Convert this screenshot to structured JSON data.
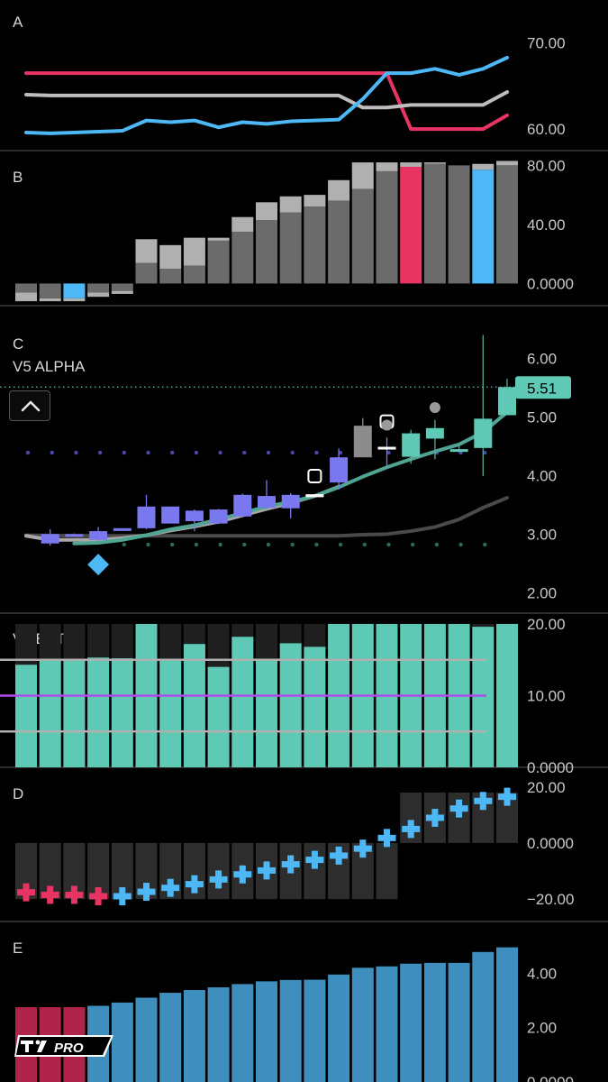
{
  "colors": {
    "red": "#e83462",
    "gray": "#bdbdbd",
    "blue": "#4db8f5",
    "teal": "#5ec9b5",
    "purple": "#7a78ef",
    "darkgray": "#6b6b6b",
    "lightgray": "#b0b0b0",
    "violet": "#b04ce8",
    "steel": "#3f8fbe",
    "crimson": "#b0234a"
  },
  "chart_data": [
    {
      "type": "line",
      "panel": "A",
      "title": "A",
      "x": [
        0,
        1,
        2,
        3,
        4,
        5,
        6,
        7,
        8,
        9,
        10,
        11,
        12,
        13,
        14,
        15,
        16,
        17,
        18,
        19,
        20
      ],
      "ylim": [
        57.5,
        75
      ],
      "yticks": [
        "70.00",
        "60.00"
      ],
      "yticks_values": [
        70,
        60
      ],
      "series": [
        {
          "color": "red",
          "values": [
            66.5,
            66.5,
            66.5,
            66.5,
            66.5,
            66.5,
            66.5,
            66.5,
            66.5,
            66.5,
            66.5,
            66.5,
            66.5,
            66.5,
            66.5,
            66.5,
            60.0,
            60.0,
            60.0,
            60.0,
            61.6
          ]
        },
        {
          "color": "gray",
          "values": [
            64.0,
            63.9,
            63.9,
            63.9,
            63.9,
            63.9,
            63.9,
            63.9,
            63.9,
            63.9,
            63.9,
            63.9,
            63.9,
            63.9,
            62.5,
            62.5,
            62.8,
            62.8,
            62.8,
            62.8,
            64.3
          ]
        },
        {
          "color": "blue",
          "values": [
            59.6,
            59.5,
            59.6,
            59.7,
            59.8,
            61.0,
            60.8,
            61.0,
            60.2,
            60.8,
            60.6,
            60.9,
            61.0,
            61.1,
            63.5,
            66.5,
            66.5,
            67.0,
            66.3,
            67.0,
            68.3
          ]
        }
      ]
    },
    {
      "type": "bar",
      "panel": "B",
      "title": "B",
      "x": [
        0,
        1,
        2,
        3,
        4,
        5,
        6,
        7,
        8,
        9,
        10,
        11,
        12,
        13,
        14,
        15,
        16,
        17,
        18,
        19,
        20
      ],
      "ylim": [
        -15,
        90
      ],
      "yticks": [
        "80.00",
        "40.00",
        "0.0000"
      ],
      "yticks_values": [
        80,
        40,
        0
      ],
      "series": [
        {
          "name": "",
          "style": "main",
          "values": [
            -6,
            -10,
            -10,
            -6,
            -5,
            14,
            10,
            12,
            29,
            35,
            43,
            48,
            52,
            56,
            64,
            76,
            79,
            81,
            80,
            77,
            80
          ],
          "colors": [
            "darkgray",
            "darkgray",
            "blue",
            "darkgray",
            "darkgray",
            "darkgray",
            "darkgray",
            "darkgray",
            "darkgray",
            "darkgray",
            "darkgray",
            "darkgray",
            "darkgray",
            "darkgray",
            "darkgray",
            "darkgray",
            "red",
            "darkgray",
            "darkgray",
            "blue",
            "darkgray"
          ]
        },
        {
          "name": "",
          "style": "cap",
          "values": [
            -12,
            -12,
            -12,
            -9,
            -7,
            30,
            26,
            31,
            31,
            45,
            55,
            59,
            60,
            70,
            82,
            82,
            82,
            82,
            80,
            81,
            83
          ]
        }
      ]
    },
    {
      "type": "candlestick",
      "panel": "C",
      "title": "C",
      "label": "V5 ALPHA",
      "last_value": "5.51",
      "last_value_num": 5.51,
      "ylim": [
        1.65,
        6.9
      ],
      "yticks": [
        "6.00",
        "5.00",
        "4.00",
        "3.00",
        "2.00"
      ],
      "yticks_values": [
        6,
        5,
        4,
        3,
        2
      ],
      "candles": [
        {
          "i": 1,
          "open": 2.84,
          "close": 3.0,
          "high": 3.08,
          "low": 2.8,
          "color": "purple"
        },
        {
          "i": 2,
          "open": 2.97,
          "close": 3.0,
          "high": 3.01,
          "low": 2.96,
          "color": "purple"
        },
        {
          "i": 3,
          "open": 2.9,
          "close": 3.05,
          "high": 3.12,
          "low": 2.88,
          "color": "purple"
        },
        {
          "i": 4,
          "open": 3.08,
          "close": 3.1,
          "high": 3.1,
          "low": 3.07,
          "color": "purple"
        },
        {
          "i": 5,
          "open": 3.1,
          "close": 3.47,
          "high": 3.67,
          "low": 3.08,
          "color": "purple"
        },
        {
          "i": 6,
          "open": 3.18,
          "close": 3.47,
          "high": 3.47,
          "low": 3.18,
          "color": "purple"
        },
        {
          "i": 7,
          "open": 3.22,
          "close": 3.4,
          "high": 3.42,
          "low": 3.05,
          "color": "purple"
        },
        {
          "i": 8,
          "open": 3.18,
          "close": 3.42,
          "high": 3.43,
          "low": 3.17,
          "color": "purple"
        },
        {
          "i": 9,
          "open": 3.3,
          "close": 3.67,
          "high": 3.69,
          "low": 3.3,
          "color": "purple"
        },
        {
          "i": 10,
          "open": 3.45,
          "close": 3.65,
          "high": 3.92,
          "low": 3.42,
          "color": "purple"
        },
        {
          "i": 11,
          "open": 3.44,
          "close": 3.67,
          "high": 3.7,
          "low": 3.27,
          "color": "purple"
        },
        {
          "i": 12,
          "open": 3.63,
          "close": 3.68,
          "high": 3.68,
          "low": 3.63,
          "color": "white"
        },
        {
          "i": 13,
          "open": 3.88,
          "close": 4.31,
          "high": 4.46,
          "low": 3.76,
          "color": "purple"
        },
        {
          "i": 14,
          "open": 4.31,
          "close": 4.85,
          "high": 4.98,
          "low": 4.31,
          "color": "gray"
        },
        {
          "i": 15,
          "open": 4.47,
          "close": 4.49,
          "high": 4.65,
          "low": 4.12,
          "color": "white"
        },
        {
          "i": 16,
          "open": 4.32,
          "close": 4.72,
          "high": 4.78,
          "low": 4.2,
          "color": "teal"
        },
        {
          "i": 17,
          "open": 4.63,
          "close": 4.81,
          "high": 4.95,
          "low": 4.28,
          "color": "teal"
        },
        {
          "i": 18,
          "open": 4.43,
          "close": 4.45,
          "high": 4.55,
          "low": 4.4,
          "color": "teal"
        },
        {
          "i": 19,
          "open": 4.47,
          "close": 4.97,
          "high": 6.4,
          "low": 3.99,
          "color": "teal"
        },
        {
          "i": 20,
          "open": 5.03,
          "close": 5.51,
          "high": 5.65,
          "low": 5.03,
          "color": "teal"
        }
      ],
      "ma_teal": [
        [
          2,
          2.84
        ],
        [
          3,
          2.85
        ],
        [
          4,
          2.9
        ],
        [
          5,
          2.98
        ],
        [
          6,
          3.08
        ],
        [
          7,
          3.15
        ],
        [
          8,
          3.25
        ],
        [
          9,
          3.36
        ],
        [
          10,
          3.47
        ],
        [
          11,
          3.55
        ],
        [
          12,
          3.65
        ],
        [
          13,
          3.8
        ],
        [
          14,
          3.98
        ],
        [
          15,
          4.14
        ],
        [
          16,
          4.28
        ],
        [
          17,
          4.41
        ],
        [
          18,
          4.53
        ],
        [
          19,
          4.74
        ],
        [
          20,
          5.08
        ]
      ],
      "ma_gray": [
        [
          0,
          2.97
        ],
        [
          1,
          2.9
        ],
        [
          2,
          2.9
        ],
        [
          3,
          2.9
        ],
        [
          4,
          2.93
        ],
        [
          5,
          2.98
        ],
        [
          6,
          3.06
        ],
        [
          7,
          3.13
        ],
        [
          8,
          3.21
        ],
        [
          9,
          3.32
        ],
        [
          10,
          3.43
        ],
        [
          11,
          3.53
        ],
        [
          12,
          3.65
        ],
        [
          13,
          3.81
        ]
      ],
      "ma_dark": [
        [
          0,
          2.98
        ],
        [
          2,
          2.97
        ],
        [
          4,
          2.97
        ],
        [
          6,
          2.97
        ],
        [
          8,
          2.97
        ],
        [
          10,
          2.97
        ],
        [
          12,
          2.97
        ],
        [
          13,
          2.97
        ],
        [
          14,
          2.99
        ],
        [
          15,
          3.0
        ],
        [
          16,
          3.05
        ],
        [
          17,
          3.12
        ],
        [
          18,
          3.25
        ],
        [
          19,
          3.45
        ],
        [
          20,
          3.62
        ]
      ],
      "dots_purple": {
        "value": 4.39,
        "from": 0,
        "to": 19
      },
      "dots_teal": {
        "value": 2.82,
        "from": 4,
        "to": 19
      },
      "diamond": {
        "i": 3,
        "value": 2.48
      },
      "square_markers": [
        {
          "i": 12,
          "value": 3.99
        },
        {
          "i": 15,
          "value": 4.92
        }
      ],
      "circle_markers": [
        {
          "i": 15,
          "value": 4.86
        },
        {
          "i": 17,
          "value": 5.16
        }
      ]
    },
    {
      "type": "bar",
      "panel": "V5 BETA",
      "title": "V5 BETA",
      "ylim": [
        0,
        21.5
      ],
      "yticks": [
        "20.00",
        "10.00",
        "0.0000"
      ],
      "yticks_values": [
        20,
        10,
        0
      ],
      "values": [
        14.3,
        15.0,
        15.0,
        15.3,
        15.2,
        20.0,
        15.0,
        17.2,
        14.0,
        18.2,
        15.0,
        17.3,
        16.8,
        20.0,
        20.0,
        20.0,
        20.0,
        20.0,
        20.0,
        19.6,
        20.0
      ],
      "hlines": [
        {
          "value": 15.0,
          "color": "lightgray"
        },
        {
          "value": 10.0,
          "color": "violet"
        },
        {
          "value": 5.0,
          "color": "lightgray"
        }
      ]
    },
    {
      "type": "bar",
      "panel": "D",
      "title": "D",
      "ylim": [
        -28,
        27
      ],
      "yticks": [
        "20.00",
        "0.0000",
        "−20.00"
      ],
      "yticks_values": [
        20,
        0,
        -20
      ],
      "bg_values": [
        -20,
        -20,
        -20,
        -20,
        -20,
        -20,
        -20,
        -20,
        -20,
        -20,
        -20,
        -20,
        -20,
        -20,
        -20,
        -20,
        18,
        18,
        18,
        18,
        18
      ],
      "markers": [
        -17.6,
        -18.5,
        -18.5,
        -19.0,
        -19.0,
        -17.4,
        -16.0,
        -14.7,
        -13.0,
        -11.2,
        -9.8,
        -7.6,
        -6.0,
        -4.5,
        -2.0,
        1.8,
        5.0,
        9.0,
        12.3,
        15.0,
        16.5,
        17.0
      ],
      "marker_colors": [
        "red",
        "red",
        "red",
        "red",
        "blue",
        "blue",
        "blue",
        "blue",
        "blue",
        "blue",
        "blue",
        "blue",
        "blue",
        "blue",
        "blue",
        "blue",
        "blue",
        "blue",
        "blue",
        "blue",
        "blue",
        "blue"
      ]
    },
    {
      "type": "bar",
      "panel": "E",
      "title": "E",
      "ylim": [
        0,
        5.9
      ],
      "yticks": [
        "4.00",
        "2.00",
        "0.0000"
      ],
      "yticks_values": [
        4,
        2,
        0
      ],
      "values": [
        2.75,
        2.75,
        2.75,
        2.8,
        2.92,
        3.1,
        3.28,
        3.38,
        3.48,
        3.6,
        3.7,
        3.75,
        3.76,
        3.95,
        4.2,
        4.25,
        4.35,
        4.38,
        4.38,
        4.78,
        4.95
      ],
      "colors": [
        "crimson",
        "crimson",
        "crimson",
        "steel",
        "steel",
        "steel",
        "steel",
        "steel",
        "steel",
        "steel",
        "steel",
        "steel",
        "steel",
        "steel",
        "steel",
        "steel",
        "steel",
        "steel",
        "steel",
        "steel",
        "steel"
      ]
    }
  ],
  "branding": {
    "logo_text": "PRO"
  }
}
